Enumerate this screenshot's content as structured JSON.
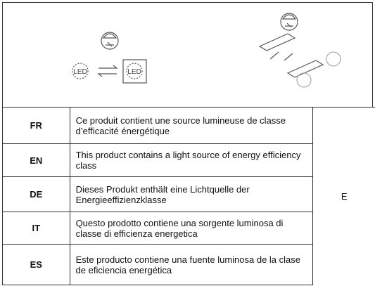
{
  "icons": {
    "led_label": "LED"
  },
  "table": {
    "rows": [
      [
        "FR",
        "Ce produit contient une source lumineuse de classe d’efficacité énergétique"
      ],
      [
        "EN",
        "This product contains a light source of energy efficiency class"
      ],
      [
        "DE",
        "Dieses Produkt enthält eine Lichtquelle der Energieeffizienzklasse"
      ],
      [
        "IT",
        "Questo prodotto contiene una sorgente luminosa di classe di efficienza energetica"
      ],
      [
        "ES",
        "Este producto contiene una fuente luminosa de la clase de eficiencia energética"
      ]
    ],
    "energy_class": "E"
  }
}
